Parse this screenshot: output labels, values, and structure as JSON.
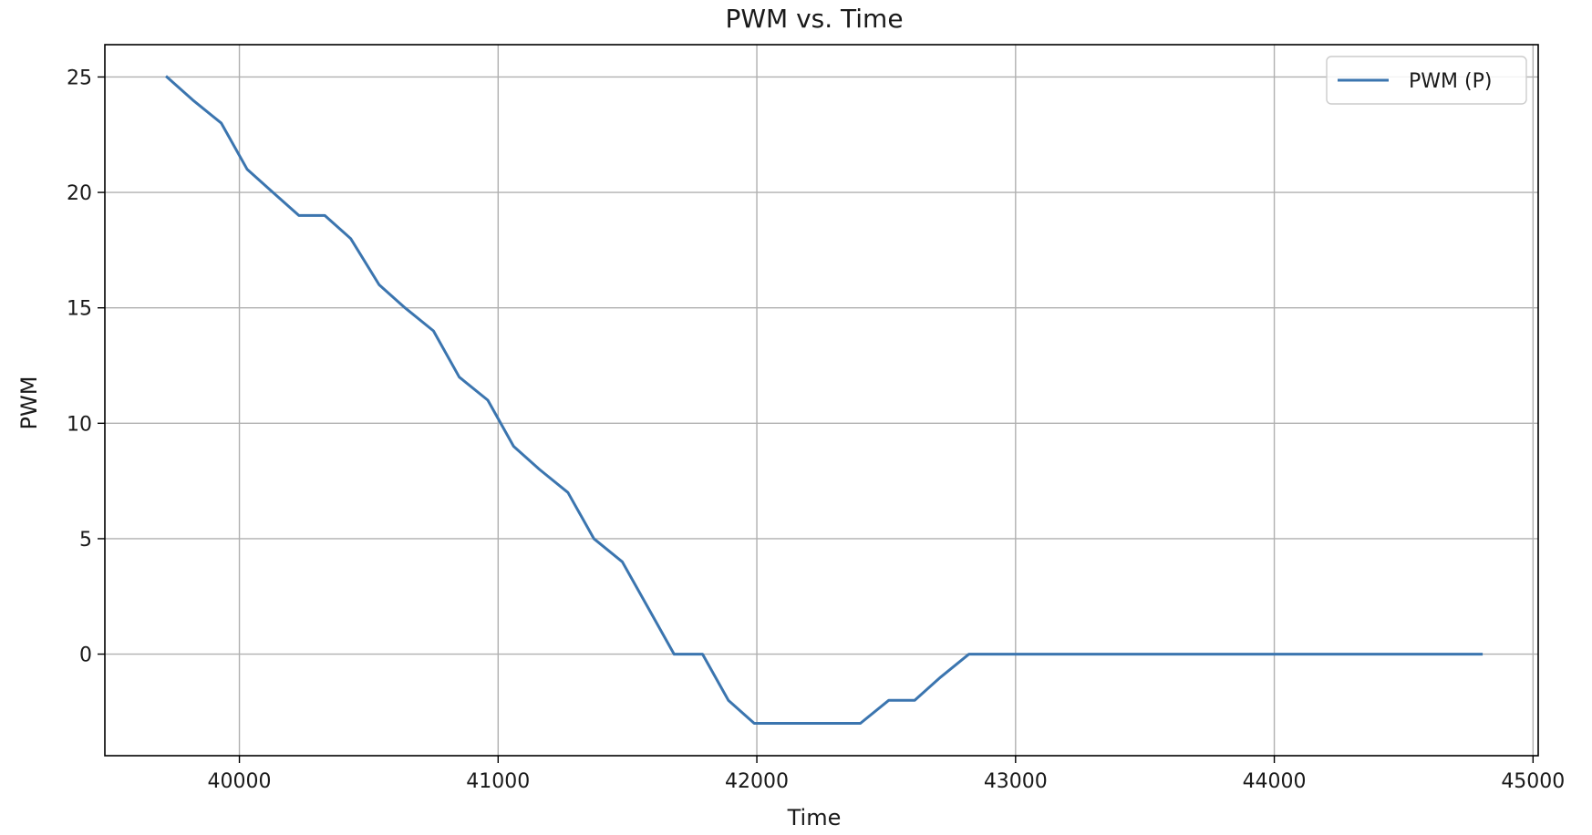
{
  "chart_data": {
    "type": "line",
    "title": "PWM vs. Time",
    "xlabel": "Time",
    "ylabel": "PWM",
    "xlim": [
      39480,
      45020
    ],
    "ylim": [
      -4.4,
      26.4
    ],
    "xticks": [
      40000,
      41000,
      42000,
      43000,
      44000,
      45000
    ],
    "yticks": [
      0,
      5,
      10,
      15,
      20,
      25
    ],
    "grid": true,
    "legend_position": "top-right",
    "series": [
      {
        "name": "PWM (P)",
        "color": "#3b75af",
        "x": [
          39720,
          39820,
          39930,
          40030,
          40130,
          40230,
          40330,
          40430,
          40540,
          40640,
          40750,
          40850,
          40960,
          41060,
          41160,
          41270,
          41370,
          41480,
          41580,
          41680,
          41790,
          41890,
          41990,
          42100,
          42200,
          42300,
          42400,
          42510,
          42610,
          42710,
          42820,
          44800
        ],
        "y": [
          25,
          24,
          23,
          21,
          20,
          19,
          19,
          18,
          16,
          15,
          14,
          12,
          11,
          9,
          8,
          7,
          5,
          4,
          2,
          0,
          0,
          -2,
          -3,
          -3,
          -3,
          -3,
          -3,
          -2,
          -2,
          -1,
          0,
          0
        ]
      }
    ]
  }
}
